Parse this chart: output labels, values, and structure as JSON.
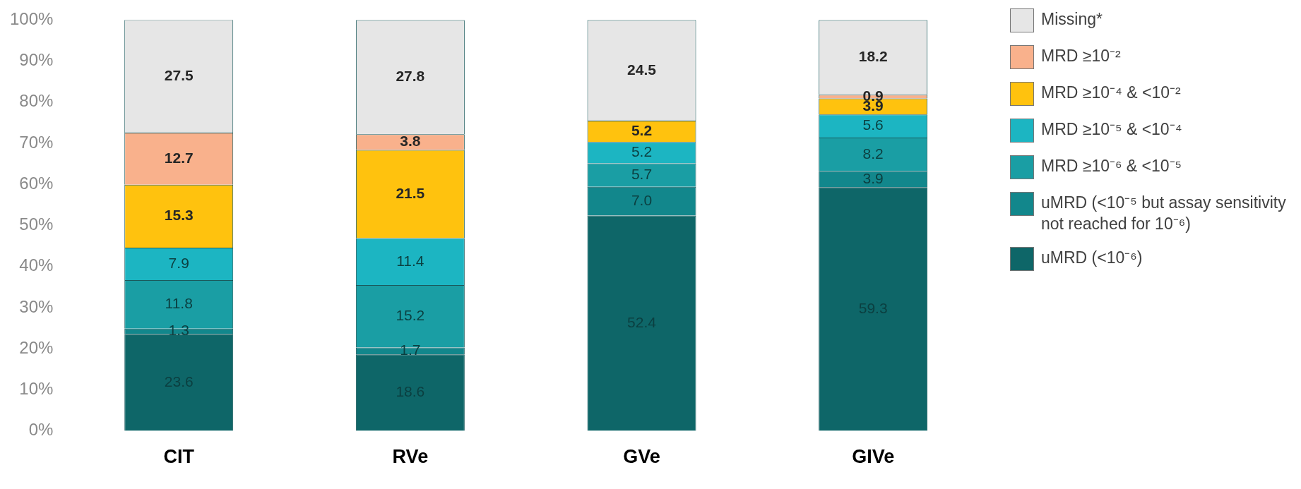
{
  "chart_data": {
    "type": "bar",
    "stacked": true,
    "categories": [
      "CIT",
      "RVe",
      "GVe",
      "GIVe"
    ],
    "ylim": [
      0,
      100
    ],
    "yticks": [
      {
        "value": 0,
        "label": "0%"
      },
      {
        "value": 10,
        "label": "10%"
      },
      {
        "value": 20,
        "label": "20%"
      },
      {
        "value": 30,
        "label": "30%"
      },
      {
        "value": 40,
        "label": "40%"
      },
      {
        "value": 50,
        "label": "50%"
      },
      {
        "value": 60,
        "label": "60%"
      },
      {
        "value": 70,
        "label": "70%"
      },
      {
        "value": 80,
        "label": "80%"
      },
      {
        "value": 90,
        "label": "90%"
      },
      {
        "value": 100,
        "label": "100%"
      }
    ],
    "grid": false,
    "legend": "right",
    "series": [
      {
        "name": "uMRD (<10⁻⁶)",
        "color": "#0e6668",
        "values": [
          23.6,
          18.6,
          52.4,
          59.3
        ],
        "value_labels": [
          "23.6",
          "18.6",
          "52.4",
          "59.3"
        ]
      },
      {
        "name": "uMRD (<10⁻⁵ but assay sensitivity not reached for 10⁻⁶)",
        "color": "#12878c",
        "values": [
          1.3,
          1.7,
          7.0,
          3.9
        ],
        "value_labels": [
          "1.3",
          "1.7",
          "7.0",
          "3.9"
        ]
      },
      {
        "name": "MRD ≥10⁻⁶ & <10⁻⁵",
        "color": "#1a9ea4",
        "values": [
          11.8,
          15.2,
          5.7,
          8.2
        ],
        "value_labels": [
          "11.8",
          "15.2",
          "5.7",
          "8.2"
        ]
      },
      {
        "name": "MRD ≥10⁻⁵ & <10⁻⁴",
        "color": "#1cb5c2",
        "values": [
          7.9,
          11.4,
          5.2,
          5.6
        ],
        "value_labels": [
          "7.9",
          "11.4",
          "5.2",
          "5.6"
        ]
      },
      {
        "name": "MRD ≥10⁻⁴ & <10⁻²",
        "color": "#ffc20e",
        "values": [
          15.3,
          21.5,
          5.2,
          3.9
        ],
        "value_labels": [
          "15.3",
          "21.5",
          "5.2",
          "3.9"
        ]
      },
      {
        "name": "MRD ≥10⁻²",
        "color": "#f9b18c",
        "values": [
          12.7,
          3.8,
          null,
          0.9
        ],
        "value_labels": [
          "12.7",
          "3.8",
          null,
          "0.9"
        ]
      },
      {
        "name": "Missing*",
        "color": "#e6e6e6",
        "values": [
          27.5,
          27.8,
          24.5,
          18.2
        ],
        "value_labels": [
          "27.5",
          "27.8",
          "24.5",
          "18.2"
        ]
      }
    ]
  }
}
